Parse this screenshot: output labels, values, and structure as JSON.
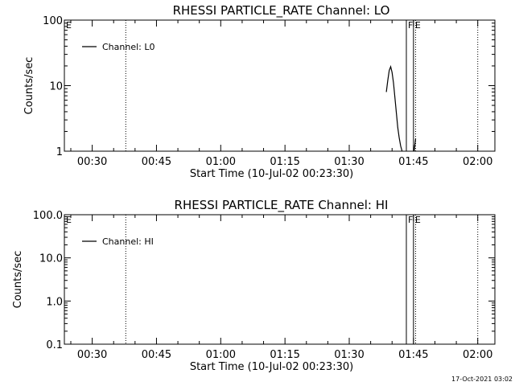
{
  "chart_data": [
    {
      "type": "line",
      "title": "RHESSI PARTICLE_RATE Channel: LO",
      "xlabel": "Start Time (10-Jul-02 00:23:30)",
      "ylabel": "Counts/sec",
      "yscale": "log",
      "ylim": [
        1,
        100
      ],
      "y_tick_labels": [
        "1",
        "10",
        "100"
      ],
      "y_tick_values": [
        1,
        10,
        100
      ],
      "xlim": [
        "00:23:30",
        "02:04:00"
      ],
      "x_tick_labels": [
        "00:30",
        "00:45",
        "01:00",
        "01:15",
        "01:30",
        "01:45",
        "02:00"
      ],
      "x_tick_values": [
        "00:30",
        "00:45",
        "01:00",
        "01:15",
        "01:30",
        "01:45",
        "02:00"
      ],
      "legend": {
        "placement": "top-left",
        "entries": [
          "Channel: L0"
        ]
      },
      "markers": [
        {
          "label": "E",
          "x": "00:23:30",
          "style": "none"
        },
        {
          "label": "",
          "x": "00:37:50",
          "style": "dotted"
        },
        {
          "label": "F",
          "x": "01:43:20",
          "style": "solid"
        },
        {
          "label": "E",
          "x": "01:45:00",
          "style": "solid"
        },
        {
          "label": "",
          "x": "01:45:30",
          "style": "dotted"
        },
        {
          "label": "",
          "x": "02:00:00",
          "style": "dotted"
        }
      ],
      "series": [
        {
          "name": "Channel: L0",
          "segments": [
            {
              "x": [
                "01:38:40",
                "01:39:00",
                "01:39:20",
                "01:39:40",
                "01:40:00",
                "01:40:20",
                "01:40:40",
                "01:41:00",
                "01:41:20",
                "01:41:40",
                "01:42:00",
                "01:42:20"
              ],
              "y": [
                8,
                12,
                17,
                19.5,
                16,
                11,
                6.5,
                3.8,
                2.3,
                1.6,
                1.2,
                1.0
              ]
            },
            {
              "x": [
                "01:45:10",
                "01:45:20",
                "01:45:30"
              ],
              "y": [
                1.0,
                1.25,
                1.55
              ]
            }
          ]
        }
      ]
    },
    {
      "type": "line",
      "title": "RHESSI PARTICLE_RATE Channel: HI",
      "xlabel": "Start Time (10-Jul-02 00:23:30)",
      "ylabel": "Counts/sec",
      "yscale": "log",
      "ylim": [
        0.1,
        100
      ],
      "y_tick_labels": [
        "0.1",
        "1.0",
        "10.0",
        "100.0"
      ],
      "y_tick_values": [
        0.1,
        1,
        10,
        100
      ],
      "xlim": [
        "00:23:30",
        "02:04:00"
      ],
      "x_tick_labels": [
        "00:30",
        "00:45",
        "01:00",
        "01:15",
        "01:30",
        "01:45",
        "02:00"
      ],
      "x_tick_values": [
        "00:30",
        "00:45",
        "01:00",
        "01:15",
        "01:30",
        "01:45",
        "02:00"
      ],
      "legend": {
        "placement": "top-left",
        "entries": [
          "Channel: HI"
        ]
      },
      "markers": [
        {
          "label": "E",
          "x": "00:23:30",
          "style": "none"
        },
        {
          "label": "",
          "x": "00:37:50",
          "style": "dotted"
        },
        {
          "label": "F",
          "x": "01:43:20",
          "style": "solid"
        },
        {
          "label": "E",
          "x": "01:45:00",
          "style": "solid"
        },
        {
          "label": "",
          "x": "01:45:30",
          "style": "dotted"
        },
        {
          "label": "",
          "x": "02:00:00",
          "style": "dotted"
        }
      ],
      "series": [
        {
          "name": "Channel: HI",
          "segments": []
        }
      ]
    }
  ],
  "footer": {
    "timestamp": "17-Oct-2021 03:02"
  },
  "colors": {
    "background": "#ffffff",
    "foreground": "#000000"
  }
}
